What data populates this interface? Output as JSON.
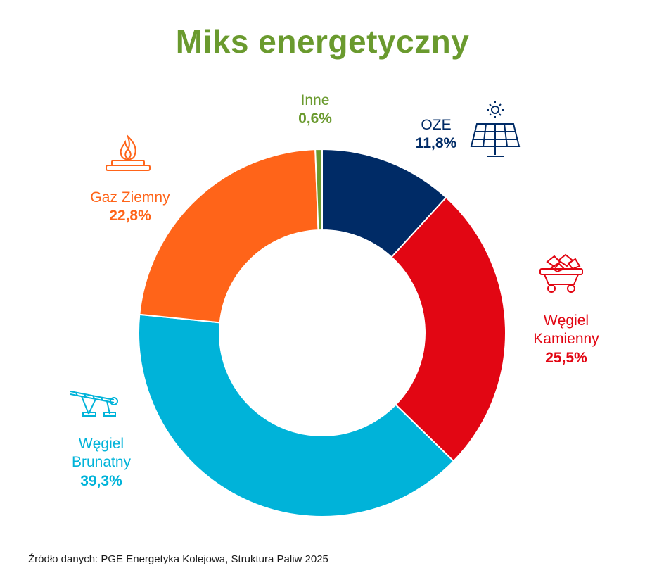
{
  "title": "Miks energetyczny",
  "source": "Źródło danych: PGE Energetyka Kolejowa, Struktura Paliw 2025",
  "chart_data": {
    "type": "pie",
    "donut": true,
    "title": "Miks energetyczny",
    "slices": [
      {
        "name": "OZE",
        "name_lines": [
          "OZE"
        ],
        "value": 11.8,
        "label": "11,8%",
        "color": "#002b66",
        "icon": "solar-panel-icon"
      },
      {
        "name": "Węgiel Kamienny",
        "name_lines": [
          "Węgiel",
          "Kamienny"
        ],
        "value": 25.5,
        "label": "25,5%",
        "color": "#e20613",
        "icon": "coal-cart-icon"
      },
      {
        "name": "Węgiel Brunatny",
        "name_lines": [
          "Węgiel",
          "Brunatny"
        ],
        "value": 39.3,
        "label": "39,3%",
        "color": "#00b3d9",
        "icon": "excavator-conveyor-icon"
      },
      {
        "name": "Gaz Ziemny",
        "name_lines": [
          "Gaz Ziemny"
        ],
        "value": 22.8,
        "label": "22,8%",
        "color": "#ff6419",
        "icon": "gas-flame-icon"
      },
      {
        "name": "Inne",
        "name_lines": [
          "Inne"
        ],
        "value": 0.6,
        "label": "0,6%",
        "color": "#6a9a2e",
        "icon": ""
      }
    ]
  }
}
